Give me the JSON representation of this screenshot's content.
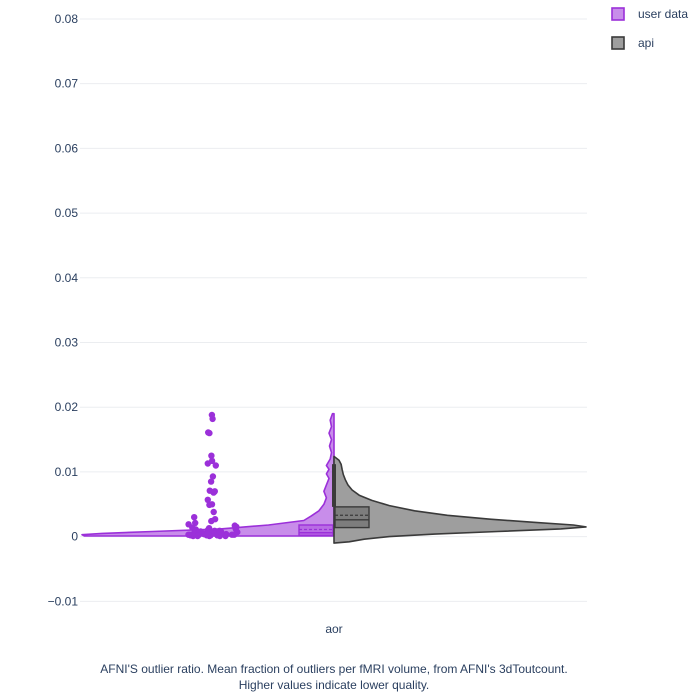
{
  "colors": {
    "user_data": "#9b30d9",
    "user_data_fill": "rgba(155,48,217,0.55)",
    "api": "#3a3a3a",
    "api_fill": "#9e9e9e",
    "grid": "#ebedf0",
    "text": "#2a3f5f"
  },
  "caption": {
    "line1": "AFNI'S outlier ratio. Mean fraction of outliers per fMRI volume, from AFNI's 3dToutcount.",
    "line2": "Higher values indicate lower quality."
  },
  "chart_data": {
    "type": "violin",
    "categories": [
      "aor"
    ],
    "ylim": [
      -0.0135,
      0.082
    ],
    "yticks": [
      -0.01,
      0,
      0.01,
      0.02,
      0.03,
      0.04,
      0.05,
      0.06,
      0.07,
      0.08
    ],
    "ytick_labels": [
      "−0.01",
      "0",
      "0.01",
      "0.02",
      "0.03",
      "0.04",
      "0.05",
      "0.06",
      "0.07",
      "0.08"
    ],
    "grid": true,
    "legend_position": "top-right",
    "series": [
      {
        "name": "user data",
        "side": "negative",
        "box": {
          "q1": 0.0002,
          "median": 0.0006,
          "mean": 0.0011,
          "q3": 0.0018
        },
        "density": [
          [
            0.0001,
            0.99
          ],
          [
            0.0003,
            1.0
          ],
          [
            0.0005,
            0.92
          ],
          [
            0.0008,
            0.72
          ],
          [
            0.0012,
            0.45
          ],
          [
            0.0018,
            0.26
          ],
          [
            0.0025,
            0.12
          ],
          [
            0.0032,
            0.09
          ],
          [
            0.004,
            0.06
          ],
          [
            0.005,
            0.04
          ],
          [
            0.006,
            0.03
          ],
          [
            0.007,
            0.04
          ],
          [
            0.008,
            0.03
          ],
          [
            0.009,
            0.02
          ],
          [
            0.0097,
            0.03
          ],
          [
            0.0104,
            0.02
          ],
          [
            0.011,
            0.03
          ],
          [
            0.012,
            0.015
          ],
          [
            0.013,
            0.01
          ],
          [
            0.014,
            0.018
          ],
          [
            0.015,
            0.01
          ],
          [
            0.016,
            0.02
          ],
          [
            0.017,
            0.01
          ],
          [
            0.018,
            0.015
          ],
          [
            0.019,
            0.006
          ]
        ],
        "points": [
          0.0188,
          0.0182,
          0.0161,
          0.016,
          0.0125,
          0.0117,
          0.0113,
          0.011,
          0.0093,
          0.0085,
          0.0071,
          0.007,
          0.0068,
          0.0057,
          0.005,
          0.0049,
          0.0038,
          0.003,
          0.0027,
          0.0024,
          0.0021,
          0.0019,
          0.0017,
          0.0015,
          0.0014,
          0.0013,
          0.0012,
          0.0011,
          0.001,
          0.0009,
          0.0008,
          0.0008,
          0.0007,
          0.0007,
          0.0006,
          0.0006,
          0.0005,
          0.0005,
          0.0005,
          0.0004,
          0.0004,
          0.0004,
          0.0003,
          0.0003,
          0.0003,
          0.0003,
          0.0002,
          0.0002,
          0.0002,
          0.0002,
          0.0001,
          0.0001,
          0.0001,
          0.0001,
          0.0001,
          0.0002,
          0.0003,
          0.0004,
          0.0006,
          0.0009
        ]
      },
      {
        "name": "api",
        "side": "positive",
        "box": {
          "q1": 0.0014,
          "median": 0.0026,
          "mean": 0.0033,
          "q3": 0.0046
        },
        "whisker_top": 0.0112,
        "density": [
          [
            -0.001,
            0.0
          ],
          [
            -0.0008,
            0.06
          ],
          [
            -0.0004,
            0.12
          ],
          [
            0.0,
            0.22
          ],
          [
            0.0004,
            0.4
          ],
          [
            0.0008,
            0.65
          ],
          [
            0.0012,
            0.9
          ],
          [
            0.0015,
            1.0
          ],
          [
            0.0018,
            0.95
          ],
          [
            0.0022,
            0.8
          ],
          [
            0.0027,
            0.62
          ],
          [
            0.0033,
            0.45
          ],
          [
            0.004,
            0.32
          ],
          [
            0.0048,
            0.22
          ],
          [
            0.0056,
            0.15
          ],
          [
            0.0064,
            0.1
          ],
          [
            0.0072,
            0.072
          ],
          [
            0.008,
            0.055
          ],
          [
            0.0088,
            0.045
          ],
          [
            0.0096,
            0.037
          ],
          [
            0.0104,
            0.032
          ],
          [
            0.0112,
            0.028
          ],
          [
            0.0118,
            0.02
          ],
          [
            0.0124,
            0.0
          ]
        ]
      }
    ]
  }
}
